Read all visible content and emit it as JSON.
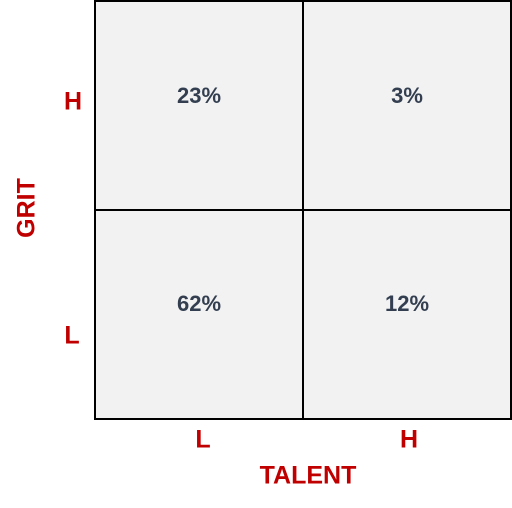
{
  "y_axis": {
    "title": "GRIT",
    "labels": [
      "H",
      "L"
    ]
  },
  "x_axis": {
    "title": "TALENT",
    "labels": [
      "L",
      "H"
    ]
  },
  "cells": [
    [
      "23%",
      "3%"
    ],
    [
      "62%",
      "12%"
    ]
  ]
}
